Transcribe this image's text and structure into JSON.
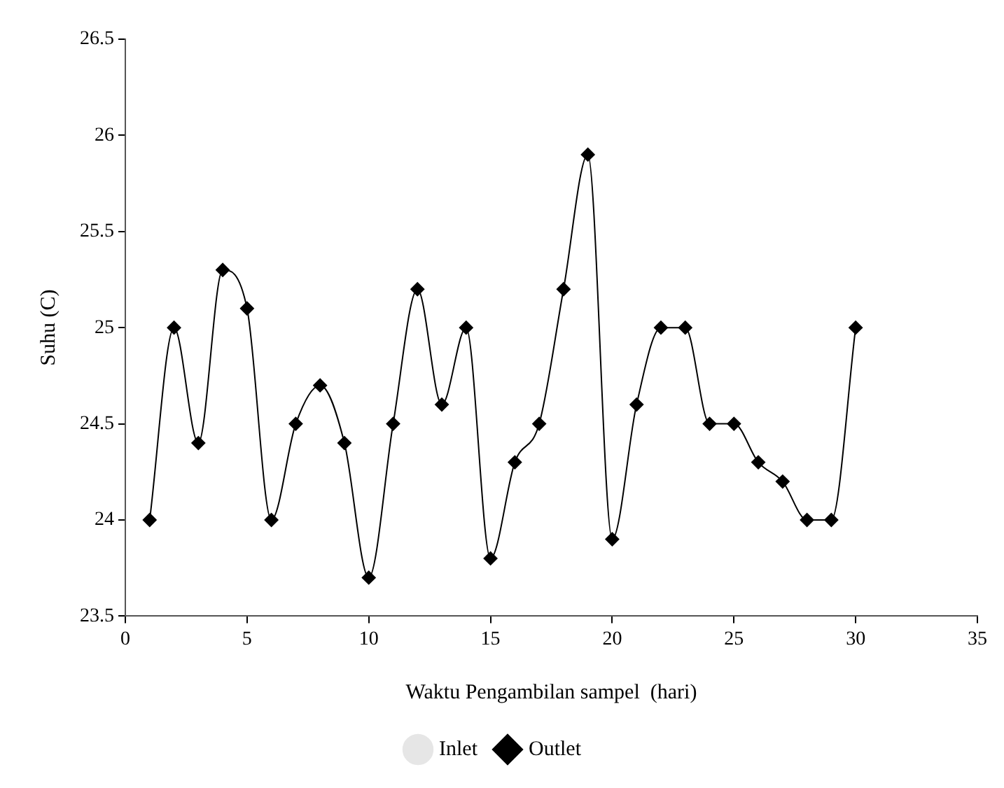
{
  "chart_data": {
    "type": "line",
    "xlabel": "Waktu Pengambilan sampel  (hari)",
    "ylabel": "Suhu (C)",
    "x": [
      1,
      2,
      3,
      4,
      5,
      6,
      7,
      8,
      9,
      10,
      11,
      12,
      13,
      14,
      15,
      16,
      17,
      18,
      19,
      20,
      21,
      22,
      23,
      24,
      25,
      26,
      27,
      28,
      29,
      30
    ],
    "series": [
      {
        "name": "Inlet",
        "color": "#e6e6e6",
        "marker": "none",
        "values": [
          null,
          null,
          null,
          null,
          null,
          null,
          null,
          null,
          null,
          null,
          null,
          null,
          null,
          null,
          null,
          null,
          null,
          null,
          null,
          null,
          null,
          null,
          null,
          null,
          null,
          null,
          null,
          null,
          null,
          null
        ]
      },
      {
        "name": "Outlet",
        "color": "#000000",
        "marker": "diamond",
        "values": [
          24,
          25,
          24.4,
          25.3,
          25.1,
          24,
          24.5,
          24.7,
          24.4,
          23.7,
          24.5,
          25.2,
          24.6,
          25,
          23.8,
          24.3,
          24.5,
          25.2,
          25.9,
          23.9,
          24.6,
          25,
          25,
          24.5,
          24.5,
          24.3,
          24.2,
          24,
          24,
          25
        ]
      }
    ],
    "xlim": [
      0,
      35
    ],
    "xticks": [
      0,
      5,
      10,
      15,
      20,
      25,
      30,
      35
    ],
    "ylim": [
      23.5,
      26.5
    ],
    "yticks": [
      23.5,
      24,
      24.5,
      25,
      25.5,
      26,
      26.5
    ],
    "grid": false,
    "legend": "bottom"
  }
}
